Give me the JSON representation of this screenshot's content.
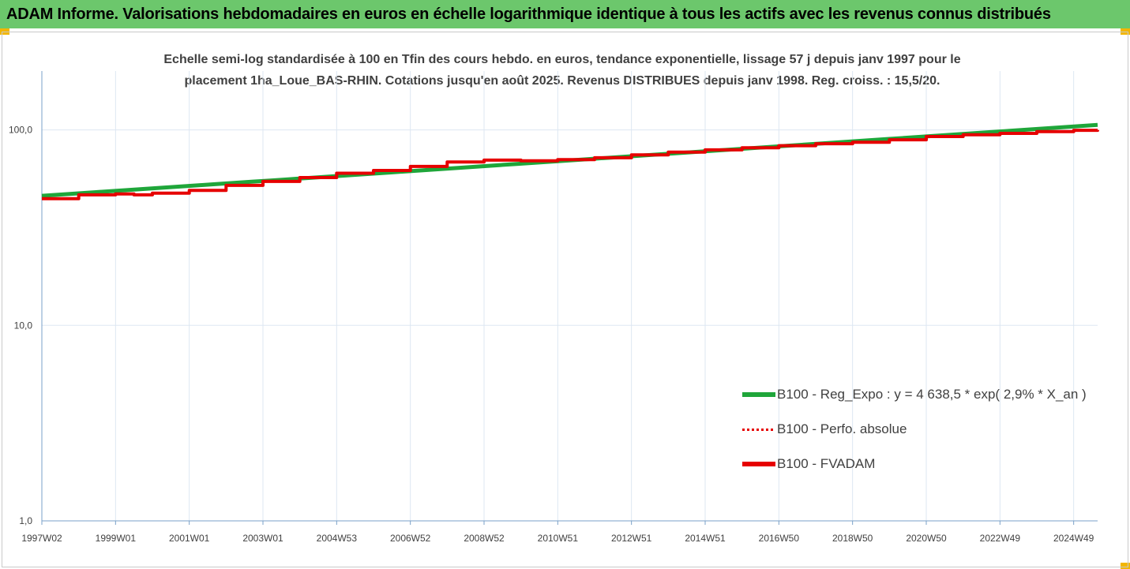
{
  "banner": {
    "title": "ADAM Informe. Valorisations hebdomadaires en euros en échelle logarithmique identique à tous les actifs avec les revenus connus distribués"
  },
  "colors": {
    "banner_bg": "#6cc76c",
    "corner_marker": "#f2b600",
    "regression": "#1fa63a",
    "performance": "#e60000",
    "fvadam": "#e60000",
    "gridline": "#dde7f2",
    "axis": "#7aa0c8"
  },
  "chart_data": {
    "type": "line",
    "subtitle_line1": "Echelle semi-log standardisée à 100 en Tfin des cours hebdo. en euros, tendance exponentielle, lissage 57 j depuis janv 1997 pour le",
    "subtitle_line2": "placement 1ha_Loue_BAS-RHIN.  Cotations jusqu'en août 2025. Revenus DISTRIBUES depuis janv 1998. Reg. croiss. : 15,5/20.",
    "y_scale": "log",
    "ylim": [
      1,
      200
    ],
    "yticks": [
      {
        "value": 1,
        "label": "1,0"
      },
      {
        "value": 10,
        "label": "10,0"
      },
      {
        "value": 100,
        "label": "100,0"
      }
    ],
    "xlim": [
      1997.0,
      2025.65
    ],
    "xticks": [
      {
        "value": 1997.0,
        "label": "1997W02"
      },
      {
        "value": 1999.0,
        "label": "1999W01"
      },
      {
        "value": 2001.0,
        "label": "2001W01"
      },
      {
        "value": 2003.0,
        "label": "2003W01"
      },
      {
        "value": 2005.0,
        "label": "2004W53"
      },
      {
        "value": 2007.0,
        "label": "2006W52"
      },
      {
        "value": 2009.0,
        "label": "2008W52"
      },
      {
        "value": 2011.0,
        "label": "2010W51"
      },
      {
        "value": 2013.0,
        "label": "2012W51"
      },
      {
        "value": 2015.0,
        "label": "2014W51"
      },
      {
        "value": 2017.0,
        "label": "2016W50"
      },
      {
        "value": 2019.0,
        "label": "2018W50"
      },
      {
        "value": 2021.0,
        "label": "2020W50"
      },
      {
        "value": 2023.0,
        "label": "2022W49"
      },
      {
        "value": 2025.0,
        "label": "2024W49"
      }
    ],
    "grid": true,
    "legend_position": "bottom-right",
    "series": [
      {
        "name": "B100 - Reg_Expo : y = 4 638,5 * exp( 2,9% *  X_an )",
        "color": "#1fa63a",
        "style": "solid",
        "x": [
          1997.0,
          2025.65
        ],
        "y": [
          46.0,
          106.0
        ]
      },
      {
        "name": "B100 - Perfo. absolue",
        "color": "#e60000",
        "style": "dotted",
        "x": [
          1997.0,
          1998.0,
          1999.0,
          1999.5,
          2000.0,
          2001.0,
          2002.0,
          2003.0,
          2004.0,
          2005.0,
          2006.0,
          2007.0,
          2008.0,
          2009.0,
          2010.0,
          2011.0,
          2012.0,
          2013.0,
          2014.0,
          2015.0,
          2016.0,
          2017.0,
          2018.0,
          2019.0,
          2020.0,
          2021.0,
          2022.0,
          2023.0,
          2024.0,
          2025.0,
          2025.65
        ],
        "y": [
          44.5,
          46.5,
          47.0,
          46.5,
          47.5,
          49.0,
          52.0,
          54.5,
          57.0,
          60.0,
          62.0,
          65.0,
          68.5,
          70.0,
          69.5,
          70.5,
          72.0,
          74.5,
          77.0,
          79.0,
          81.0,
          83.0,
          85.0,
          86.5,
          89.0,
          92.5,
          94.5,
          96.0,
          98.0,
          99.5,
          100.0
        ]
      },
      {
        "name": "B100 - FVADAM",
        "color": "#e60000",
        "style": "solid",
        "x": [
          1997.0,
          1998.0,
          1999.0,
          1999.5,
          2000.0,
          2001.0,
          2002.0,
          2003.0,
          2004.0,
          2005.0,
          2006.0,
          2007.0,
          2008.0,
          2009.0,
          2010.0,
          2011.0,
          2012.0,
          2013.0,
          2014.0,
          2015.0,
          2016.0,
          2017.0,
          2018.0,
          2019.0,
          2020.0,
          2021.0,
          2022.0,
          2023.0,
          2024.0,
          2025.0,
          2025.65
        ],
        "y": [
          44.5,
          46.5,
          47.0,
          46.5,
          47.5,
          49.0,
          52.0,
          54.5,
          57.0,
          60.0,
          62.0,
          65.0,
          68.5,
          70.0,
          69.5,
          70.5,
          72.0,
          74.5,
          77.0,
          79.0,
          81.0,
          83.0,
          85.0,
          86.5,
          89.0,
          92.5,
          94.5,
          96.0,
          98.0,
          99.5,
          100.0
        ]
      }
    ]
  }
}
